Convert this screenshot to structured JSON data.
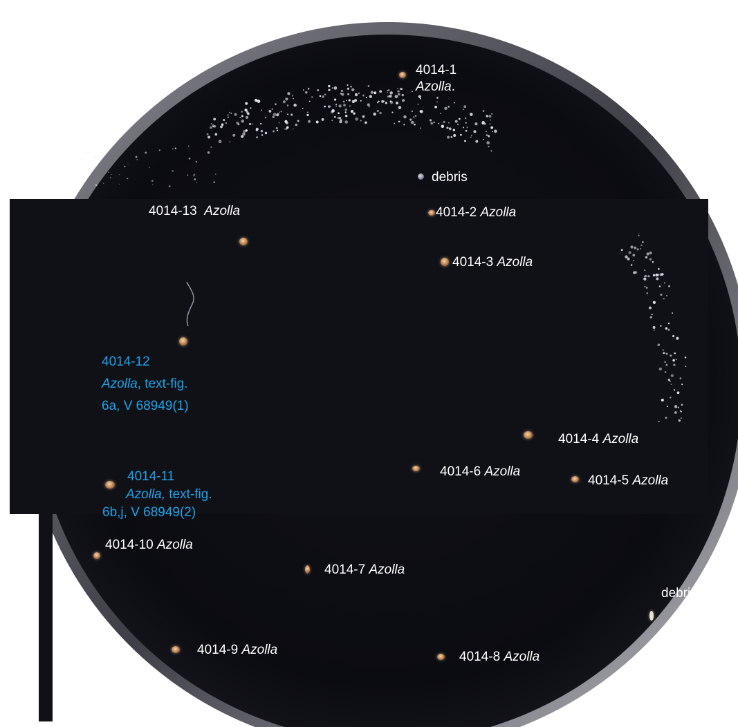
{
  "colors": {
    "background": "#ffffff",
    "dish": "#0c0d12",
    "rim": "#5c5c64",
    "label_white": "#ffffff",
    "label_blue": "#1ea3e8",
    "grains": "#e7e9f2"
  },
  "labels": {
    "l4014_1": {
      "code": "4014-1",
      "taxon": "Azolla",
      "suffix": "."
    },
    "debris_upper": {
      "text": "debris"
    },
    "l4014_2": {
      "code": "4014-2",
      "taxon": "Azolla"
    },
    "l4014_3": {
      "code": "4014-3",
      "taxon": "Azolla"
    },
    "l4014_4": {
      "code": "4014-4",
      "taxon": "Azolla"
    },
    "l4014_5": {
      "code": "4014-5",
      "taxon": "Azolla"
    },
    "l4014_6": {
      "code": "4014-6",
      "taxon": "Azolla"
    },
    "l4014_7": {
      "code": "4014-7",
      "taxon": "Azolla"
    },
    "l4014_8": {
      "code": "4014-8",
      "taxon": "Azolla"
    },
    "l4014_9": {
      "code": "4014-9",
      "taxon": "Azolla"
    },
    "l4014_10": {
      "code": "4014-10",
      "taxon": "Azolla"
    },
    "l4014_11": {
      "code": "4014-11",
      "taxon": "Azolla,",
      "fig": "text-fig.",
      "ref": "6b,j, V 68949(2)"
    },
    "l4014_12": {
      "code": "4014-12",
      "taxon": "Azolla",
      "fig": ", text-fig.",
      "ref": "6a, V 68949(1)"
    },
    "l4014_13": {
      "code": "4014-13",
      "taxon": "Azolla"
    },
    "debris_lower": {
      "text": "debris"
    }
  }
}
